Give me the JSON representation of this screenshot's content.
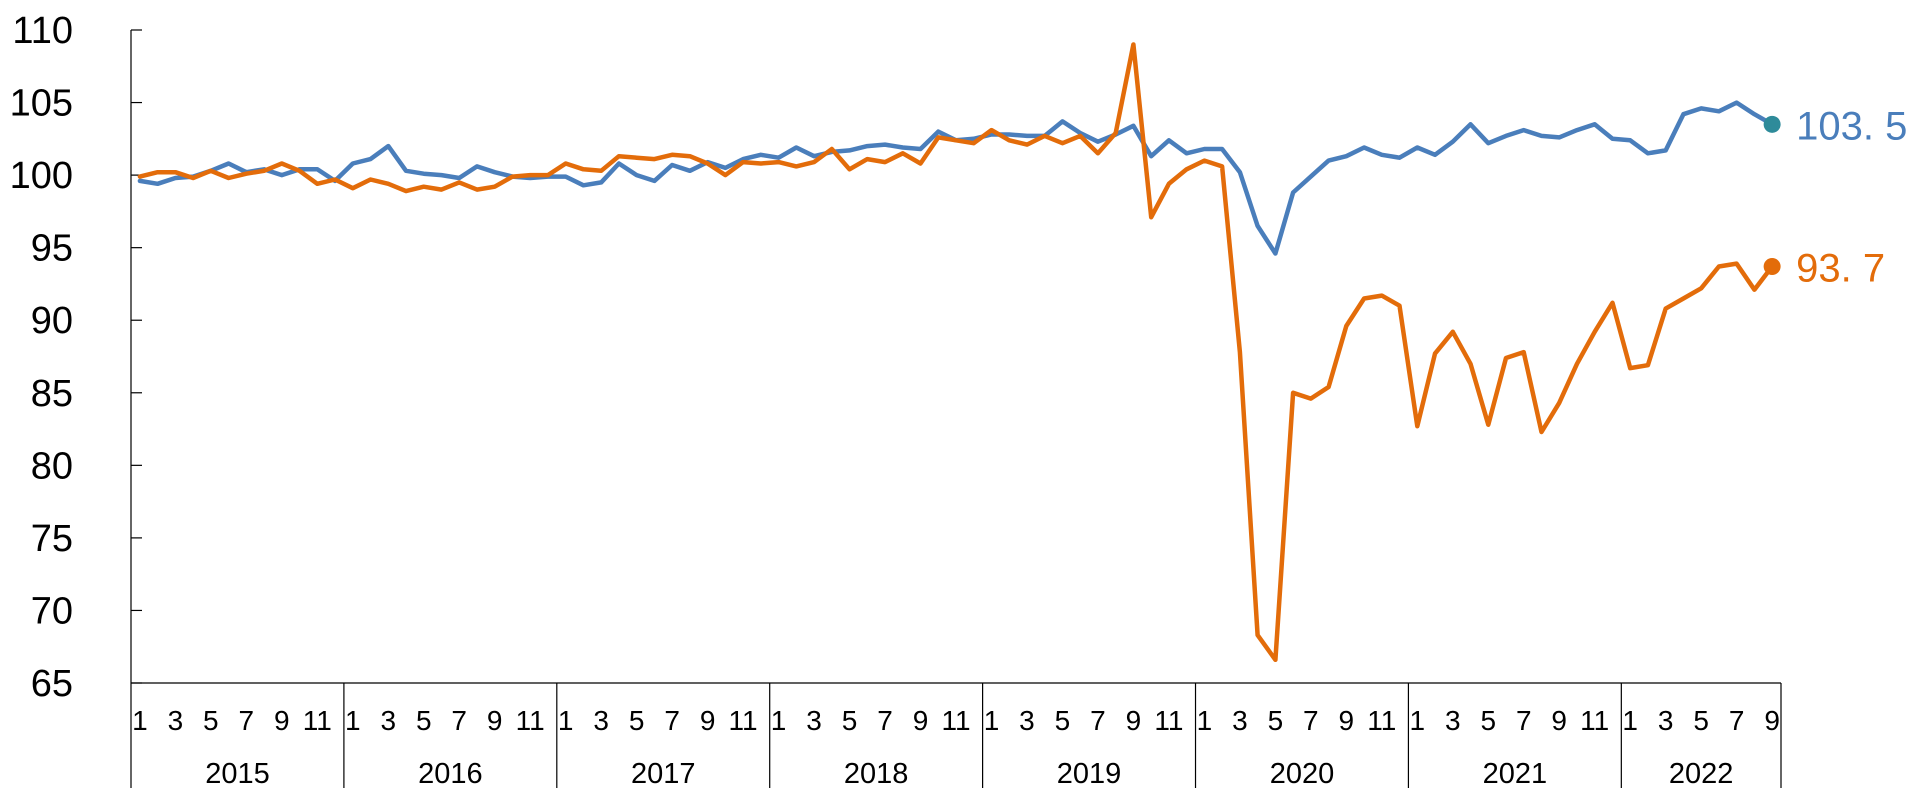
{
  "chart_data": {
    "type": "line",
    "title": "",
    "xlabel": "",
    "ylabel": "",
    "ylim": [
      65,
      110
    ],
    "yticks": [
      "65",
      "70",
      "75",
      "80",
      "85",
      "90",
      "95",
      "100",
      "105",
      "110"
    ],
    "x_month_ticks": [
      "1",
      "3",
      "5",
      "7",
      "9",
      "11"
    ],
    "years": [
      {
        "label": "2015",
        "months": 12
      },
      {
        "label": "2016",
        "months": 12
      },
      {
        "label": "2017",
        "months": 12
      },
      {
        "label": "2018",
        "months": 12
      },
      {
        "label": "2019",
        "months": 12
      },
      {
        "label": "2020",
        "months": 12
      },
      {
        "label": "2021",
        "months": 12
      },
      {
        "label": "2022",
        "months": 9
      }
    ],
    "legend": "none",
    "grid": false,
    "series": [
      {
        "color": "#4a7ebb",
        "end_label": "103. 5",
        "end_marker_color": "#2e8b9a",
        "values": [
          99.6,
          99.4,
          99.8,
          99.9,
          100.3,
          100.8,
          100.2,
          100.4,
          100.0,
          100.4,
          100.4,
          99.6,
          100.8,
          101.1,
          102.0,
          100.3,
          100.1,
          100.0,
          99.8,
          100.6,
          100.2,
          99.9,
          99.8,
          99.9,
          99.9,
          99.3,
          99.5,
          100.8,
          100.0,
          99.6,
          100.7,
          100.3,
          100.9,
          100.5,
          101.1,
          101.4,
          101.2,
          101.9,
          101.3,
          101.6,
          101.7,
          102.0,
          102.1,
          101.9,
          101.8,
          103.0,
          102.4,
          102.5,
          102.8,
          102.8,
          102.7,
          102.7,
          103.7,
          102.9,
          102.3,
          102.8,
          103.4,
          101.3,
          102.4,
          101.5,
          101.8,
          101.8,
          100.2,
          96.5,
          94.6,
          98.8,
          99.9,
          101.0,
          101.3,
          101.9,
          101.4,
          101.2,
          101.9,
          101.4,
          102.3,
          103.5,
          102.2,
          102.7,
          103.1,
          102.7,
          102.6,
          103.1,
          103.5,
          102.5,
          102.4,
          101.5,
          101.7,
          104.2,
          104.6,
          104.4,
          105.0,
          104.2,
          103.5
        ]
      },
      {
        "color": "#e36c0a",
        "end_label": "93. 7",
        "end_marker_color": "#e36c0a",
        "values": [
          99.9,
          100.2,
          100.2,
          99.8,
          100.3,
          99.8,
          100.1,
          100.3,
          100.8,
          100.3,
          99.4,
          99.7,
          99.1,
          99.7,
          99.4,
          98.9,
          99.2,
          99.0,
          99.5,
          99.0,
          99.2,
          99.9,
          100.0,
          100.0,
          100.8,
          100.4,
          100.3,
          101.3,
          101.2,
          101.1,
          101.4,
          101.3,
          100.8,
          100.0,
          100.9,
          100.8,
          100.9,
          100.6,
          100.9,
          101.8,
          100.4,
          101.1,
          100.9,
          101.5,
          100.8,
          102.6,
          102.4,
          102.2,
          103.1,
          102.4,
          102.1,
          102.7,
          102.2,
          102.7,
          101.5,
          102.9,
          109.0,
          97.1,
          99.4,
          100.4,
          101.0,
          100.6,
          87.8,
          68.3,
          66.6,
          85.0,
          84.6,
          85.4,
          89.6,
          91.5,
          91.7,
          91.0,
          82.7,
          87.7,
          89.2,
          87.0,
          82.8,
          87.4,
          87.8,
          82.3,
          84.3,
          87.0,
          89.2,
          91.2,
          86.7,
          86.9,
          90.8,
          91.5,
          92.2,
          93.7,
          93.9,
          92.1,
          93.7
        ]
      }
    ]
  }
}
